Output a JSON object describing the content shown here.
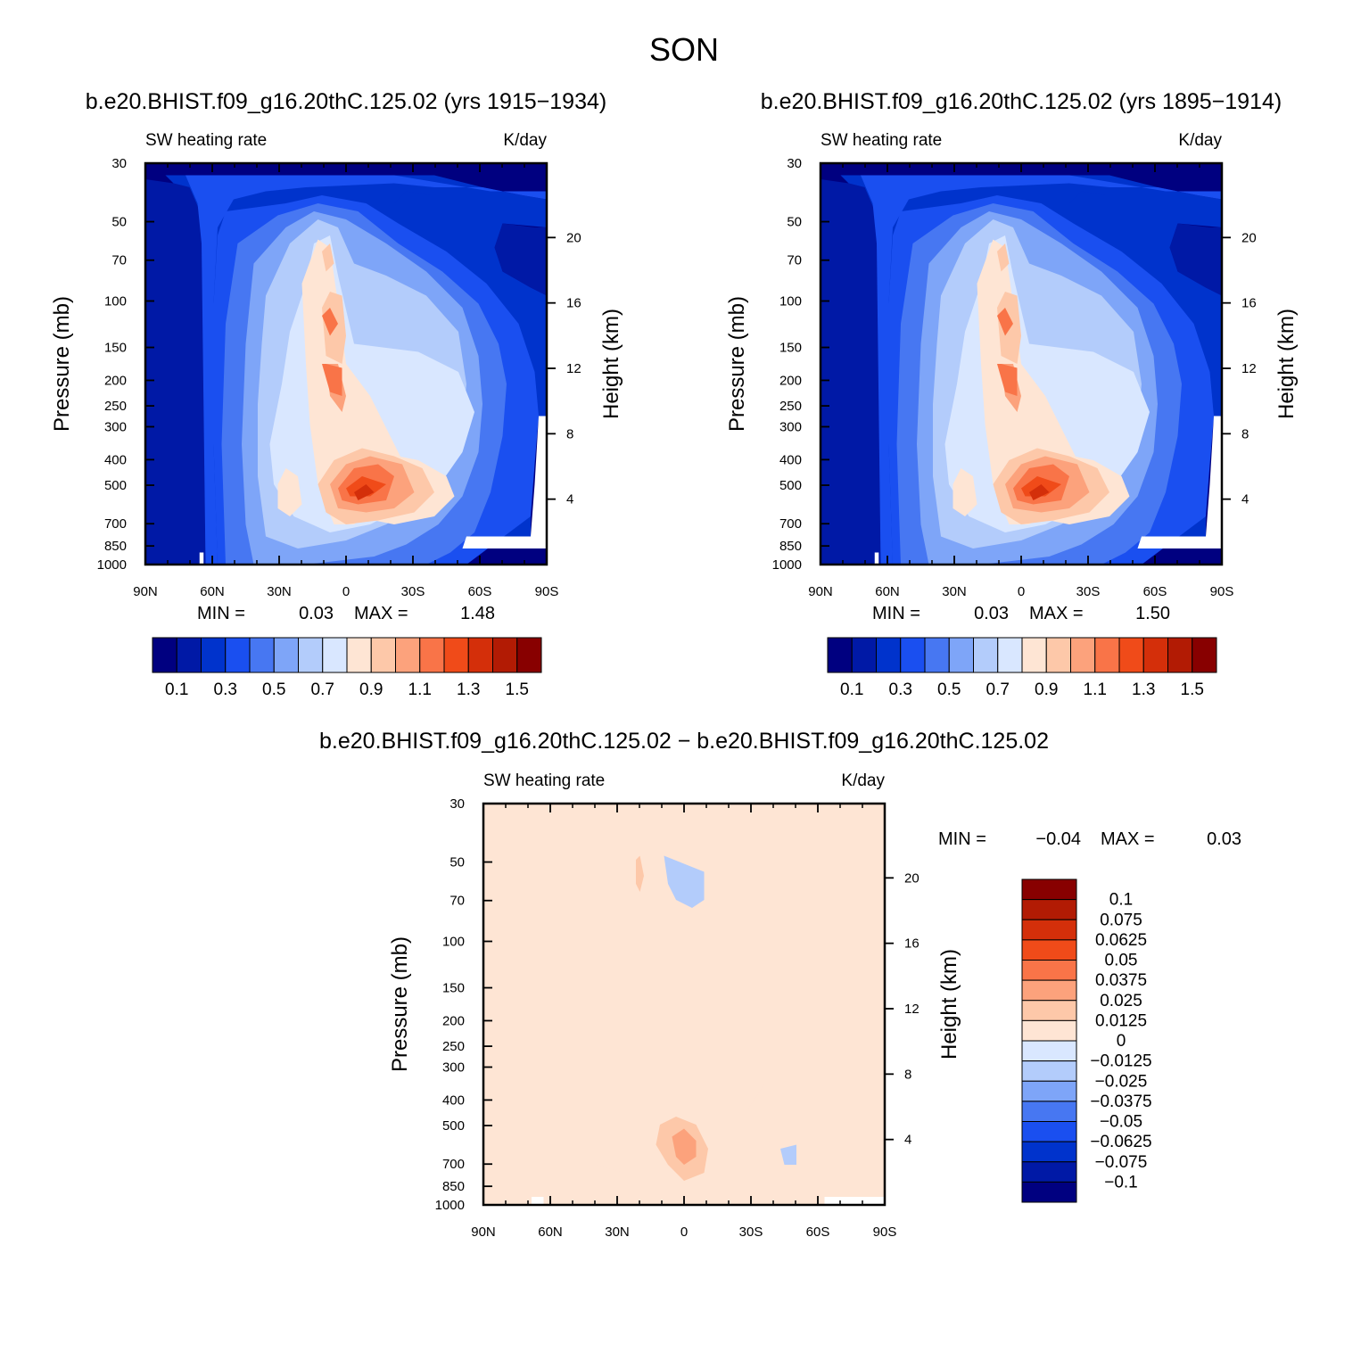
{
  "figure": {
    "season": "SON",
    "panels": [
      {
        "run_title": "b.e20.BHIST.f09_g16.20thC.125.02 (yrs 1915−1934)",
        "variable": "SW heating rate",
        "units": "K/day",
        "stats": {
          "min_label": "MIN =",
          "min": "0.03",
          "max_label": "MAX =",
          "max": "1.48"
        }
      },
      {
        "run_title": "b.e20.BHIST.f09_g16.20thC.125.02 (yrs 1895−1914)",
        "variable": "SW heating rate",
        "units": "K/day",
        "stats": {
          "min_label": "MIN =",
          "min": "0.03",
          "max_label": "MAX =",
          "max": "1.50"
        }
      },
      {
        "run_title": "b.e20.BHIST.f09_g16.20thC.125.02 − b.e20.BHIST.f09_g16.20thC.125.02",
        "variable": "SW heating rate",
        "units": "K/day",
        "stats": {
          "min_label": "MIN =",
          "min": "−0.04",
          "max_label": "MAX =",
          "max": "0.03"
        }
      }
    ],
    "axes": {
      "xlabel": "",
      "ylabel_left": "Pressure (mb)",
      "ylabel_right": "Height (km)",
      "x_ticks": [
        "90N",
        "60N",
        "30N",
        "0",
        "30S",
        "60S",
        "90S"
      ],
      "pressure_ticks": [
        "30",
        "50",
        "70",
        "100",
        "150",
        "200",
        "250",
        "300",
        "400",
        "500",
        "700",
        "850",
        "1000"
      ],
      "height_ticks": [
        "20",
        "16",
        "12",
        "8",
        "4"
      ]
    },
    "colorbar_abs": {
      "labels": [
        "0.1",
        "0.3",
        "0.5",
        "0.7",
        "0.9",
        "1.1",
        "1.3",
        "1.5"
      ],
      "colors": [
        "#000080",
        "#0019a6",
        "#0033cc",
        "#1a4ff0",
        "#4777f2",
        "#7ea5f8",
        "#b3ccfb",
        "#d9e7ff",
        "#fee5d4",
        "#fdc8a9",
        "#fca27c",
        "#f97448",
        "#f04b19",
        "#d42f0a",
        "#b21b04",
        "#880000"
      ]
    },
    "colorbar_diff": {
      "labels": [
        "0.1",
        "0.075",
        "0.0625",
        "0.05",
        "0.0375",
        "0.025",
        "0.0125",
        "0",
        "−0.0125",
        "−0.025",
        "−0.0375",
        "−0.05",
        "−0.0625",
        "−0.075",
        "−0.1"
      ],
      "colors": [
        "#880000",
        "#b21b04",
        "#d42f0a",
        "#f04b19",
        "#f97448",
        "#fca27c",
        "#fdc8a9",
        "#fee5d4",
        "#d9e7ff",
        "#b3ccfb",
        "#7ea5f8",
        "#4777f2",
        "#1a4ff0",
        "#0033cc",
        "#0019a6",
        "#000080"
      ]
    }
  },
  "chart_data": [
    {
      "type": "heatmap",
      "title": "b.e20.BHIST.f09_g16.20thC.125.02 (yrs 1915−1934)",
      "subtitle": "SW heating rate  K/day",
      "xlabel": "",
      "ylabel": "Pressure (mb)",
      "x_ticks": [
        "90N",
        "60N",
        "30N",
        "0",
        "30S",
        "60S",
        "90S"
      ],
      "y_ticks": [
        30,
        50,
        70,
        100,
        150,
        200,
        250,
        300,
        400,
        500,
        700,
        850,
        1000
      ],
      "y_scale": "log-pressure (inverted)",
      "secondary_y": {
        "label": "Height (km)",
        "ticks": [
          20,
          16,
          12,
          8,
          4
        ]
      },
      "levels": [
        0.1,
        0.2,
        0.3,
        0.4,
        0.5,
        0.6,
        0.7,
        0.8,
        0.9,
        1.0,
        1.1,
        1.2,
        1.3,
        1.4,
        1.5
      ],
      "min": 0.03,
      "max": 1.48
    },
    {
      "type": "heatmap",
      "title": "b.e20.BHIST.f09_g16.20thC.125.02 (yrs 1895−1914)",
      "subtitle": "SW heating rate  K/day",
      "xlabel": "",
      "ylabel": "Pressure (mb)",
      "x_ticks": [
        "90N",
        "60N",
        "30N",
        "0",
        "30S",
        "60S",
        "90S"
      ],
      "y_ticks": [
        30,
        50,
        70,
        100,
        150,
        200,
        250,
        300,
        400,
        500,
        700,
        850,
        1000
      ],
      "y_scale": "log-pressure (inverted)",
      "secondary_y": {
        "label": "Height (km)",
        "ticks": [
          20,
          16,
          12,
          8,
          4
        ]
      },
      "levels": [
        0.1,
        0.2,
        0.3,
        0.4,
        0.5,
        0.6,
        0.7,
        0.8,
        0.9,
        1.0,
        1.1,
        1.2,
        1.3,
        1.4,
        1.5
      ],
      "min": 0.03,
      "max": 1.5
    },
    {
      "type": "heatmap",
      "title": "b.e20.BHIST.f09_g16.20thC.125.02 − b.e20.BHIST.f09_g16.20thC.125.02",
      "subtitle": "SW heating rate  K/day",
      "xlabel": "",
      "ylabel": "Pressure (mb)",
      "x_ticks": [
        "90N",
        "60N",
        "30N",
        "0",
        "30S",
        "60S",
        "90S"
      ],
      "y_ticks": [
        30,
        50,
        70,
        100,
        150,
        200,
        250,
        300,
        400,
        500,
        700,
        850,
        1000
      ],
      "y_scale": "log-pressure (inverted)",
      "secondary_y": {
        "label": "Height (km)",
        "ticks": [
          20,
          16,
          12,
          8,
          4
        ]
      },
      "levels": [
        -0.1,
        -0.075,
        -0.0625,
        -0.05,
        -0.0375,
        -0.025,
        -0.0125,
        0,
        0.0125,
        0.025,
        0.0375,
        0.05,
        0.0625,
        0.075,
        0.1
      ],
      "min": -0.04,
      "max": 0.03
    }
  ]
}
